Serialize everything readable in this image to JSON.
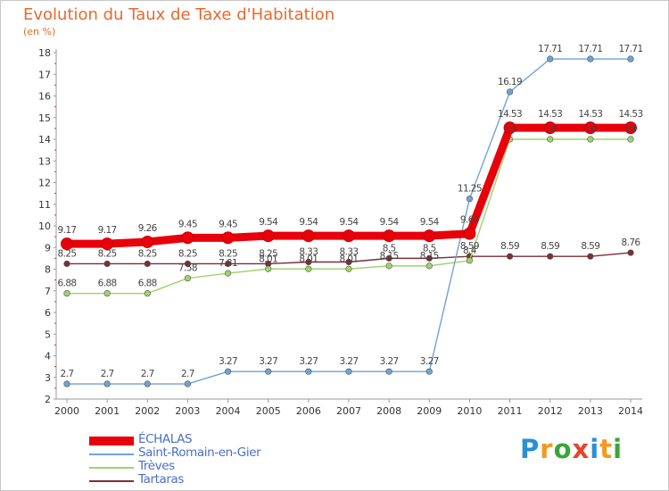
{
  "title": "Evolution du Taux de Taxe d'Habitation",
  "subtitle": "(en %)",
  "logo": {
    "letters": [
      "P",
      "r",
      "o",
      "x",
      "i",
      "t",
      "i"
    ],
    "colors": [
      "#2a8fd6",
      "#f29a1e",
      "#3aa63a",
      "#e8432b",
      "#2a8fd6",
      "#f29a1e",
      "#3aa63a"
    ]
  },
  "chart_data": {
    "type": "line",
    "x": [
      "2000",
      "2001",
      "2002",
      "2003",
      "2004",
      "2005",
      "2006",
      "2007",
      "2008",
      "2009",
      "2010",
      "2011",
      "2012",
      "2013",
      "2014"
    ],
    "ylim": [
      2,
      18
    ],
    "yticks": [
      "2",
      "3",
      "4",
      "5",
      "6",
      "7",
      "8",
      "9",
      "10",
      "11",
      "12",
      "13",
      "14",
      "15",
      "16",
      "17",
      "18"
    ],
    "grid": false,
    "legend_position": "bottom-left",
    "series": [
      {
        "name": "ÉCHALAS",
        "color": "#e8000a",
        "values": [
          9.17,
          9.17,
          9.26,
          9.45,
          9.45,
          9.54,
          9.54,
          9.54,
          9.54,
          9.54,
          9.64,
          14.53,
          14.53,
          14.53,
          14.53
        ],
        "labels": [
          "9.17",
          "9.17",
          "9.26",
          "9.45",
          "9.45",
          "9.54",
          "9.54",
          "9.54",
          "9.54",
          "9.54",
          "9.64",
          "14.53",
          "14.53",
          "14.53",
          "14.53"
        ]
      },
      {
        "name": "Saint-Romain-en-Gier",
        "color": "#6fa3d4",
        "values": [
          2.7,
          2.7,
          2.7,
          2.7,
          3.27,
          3.27,
          3.27,
          3.27,
          3.27,
          3.27,
          11.25,
          16.19,
          17.71,
          17.71,
          17.71
        ],
        "labels": [
          "2.7",
          "2.7",
          "2.7",
          "2.7",
          "3.27",
          "3.27",
          "3.27",
          "3.27",
          "3.27",
          "3.27",
          "11.25",
          "16.19",
          "17.71",
          "17.71",
          "17.71"
        ]
      },
      {
        "name": "Trèves",
        "color": "#9fd36b",
        "values": [
          6.88,
          6.88,
          6.88,
          7.58,
          7.81,
          8.01,
          8.01,
          8.01,
          8.15,
          8.15,
          8.4,
          14,
          14,
          14,
          14
        ],
        "labels": [
          "6.88",
          "6.88",
          "6.88",
          "7.58",
          "7.81",
          "8.01",
          "8.01",
          "8.01",
          "8.15",
          "8.15",
          "8.4",
          "14",
          "14",
          "14",
          "14"
        ]
      },
      {
        "name": "Tartaras",
        "color": "#7a2f35",
        "values": [
          8.25,
          8.25,
          8.25,
          8.25,
          8.25,
          8.25,
          8.33,
          8.33,
          8.5,
          8.5,
          8.59,
          8.59,
          8.59,
          8.59,
          8.76
        ],
        "labels": [
          "8.25",
          "8.25",
          "8.25",
          "8.25",
          "8.25",
          "8.25",
          "8.33",
          "8.33",
          "8.5",
          "8.5",
          "8.59",
          "8.59",
          "8.59",
          "8.59",
          "8.76"
        ]
      }
    ]
  }
}
